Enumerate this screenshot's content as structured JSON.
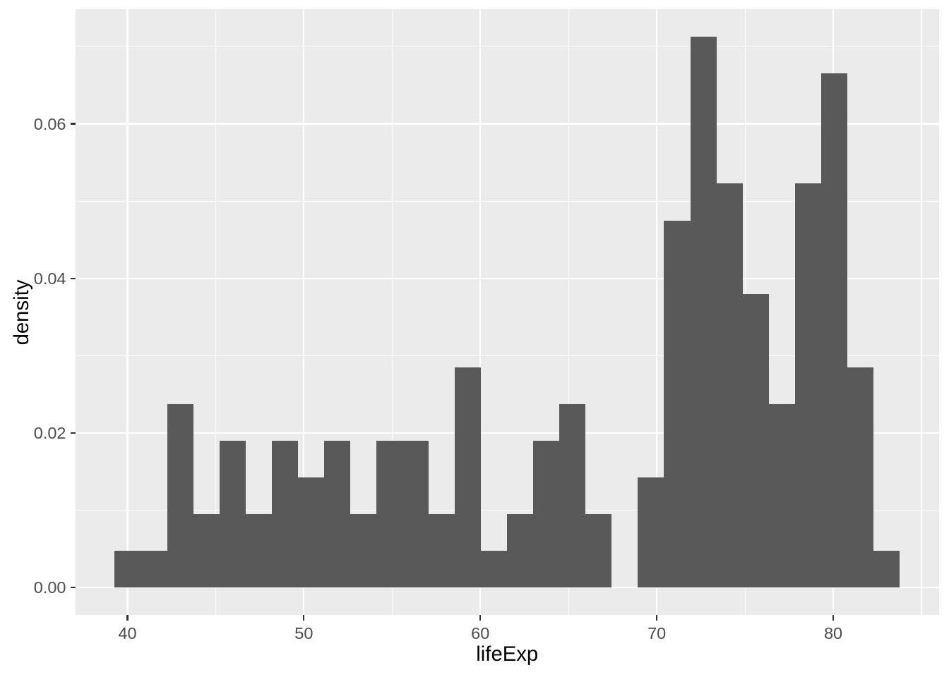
{
  "chart_data": {
    "type": "bar",
    "subtype": "histogram-density",
    "title": "",
    "xlabel": "lifeExp",
    "ylabel": "density",
    "xlim": [
      37.06,
      85.98
    ],
    "ylim": [
      -0.00356,
      0.07483
    ],
    "grid": true,
    "legend": "none",
    "x_major_ticks": [
      40,
      50,
      60,
      70,
      80
    ],
    "x_major_tick_labels": [
      "40",
      "50",
      "60",
      "70",
      "80"
    ],
    "x_minor_ticks": [
      45,
      55,
      65,
      75,
      85
    ],
    "y_major_ticks": [
      0.0,
      0.02,
      0.04,
      0.06
    ],
    "y_major_tick_labels": [
      "0.00",
      "0.02",
      "0.04",
      "0.06"
    ],
    "y_minor_ticks": [
      0.01,
      0.03,
      0.05,
      0.07
    ],
    "bin_width": 1.4824,
    "bin_edges": [
      39.28,
      40.77,
      42.25,
      43.73,
      45.21,
      46.7,
      48.18,
      49.66,
      51.14,
      52.63,
      54.11,
      55.59,
      57.07,
      58.56,
      60.04,
      61.52,
      63.0,
      64.48,
      65.97,
      67.45,
      68.93,
      70.41,
      71.9,
      73.38,
      74.86,
      76.34,
      77.83,
      79.31,
      80.79,
      82.27,
      83.76
    ],
    "counts": [
      1,
      1,
      5,
      2,
      4,
      2,
      4,
      3,
      4,
      2,
      4,
      4,
      2,
      6,
      1,
      2,
      4,
      5,
      2,
      0,
      3,
      10,
      15,
      11,
      8,
      5,
      11,
      14,
      6,
      1
    ],
    "densities": [
      0.00475,
      0.00475,
      0.02375,
      0.0095,
      0.019,
      0.0095,
      0.019,
      0.01425,
      0.019,
      0.0095,
      0.019,
      0.019,
      0.0095,
      0.0285,
      0.00475,
      0.0095,
      0.019,
      0.02375,
      0.0095,
      0.0,
      0.01425,
      0.04751,
      0.07126,
      0.05226,
      0.038,
      0.02375,
      0.05226,
      0.06651,
      0.0285,
      0.00475
    ],
    "style": {
      "bar_color": "#595959",
      "panel_color": "#EBEBEB",
      "grid_color": "#FFFFFF",
      "tick_mark_color": "#333333",
      "axis_text_color": "#4D4D4D",
      "axis_title_color": "#000000",
      "background_color": "#FFFFFF"
    }
  }
}
